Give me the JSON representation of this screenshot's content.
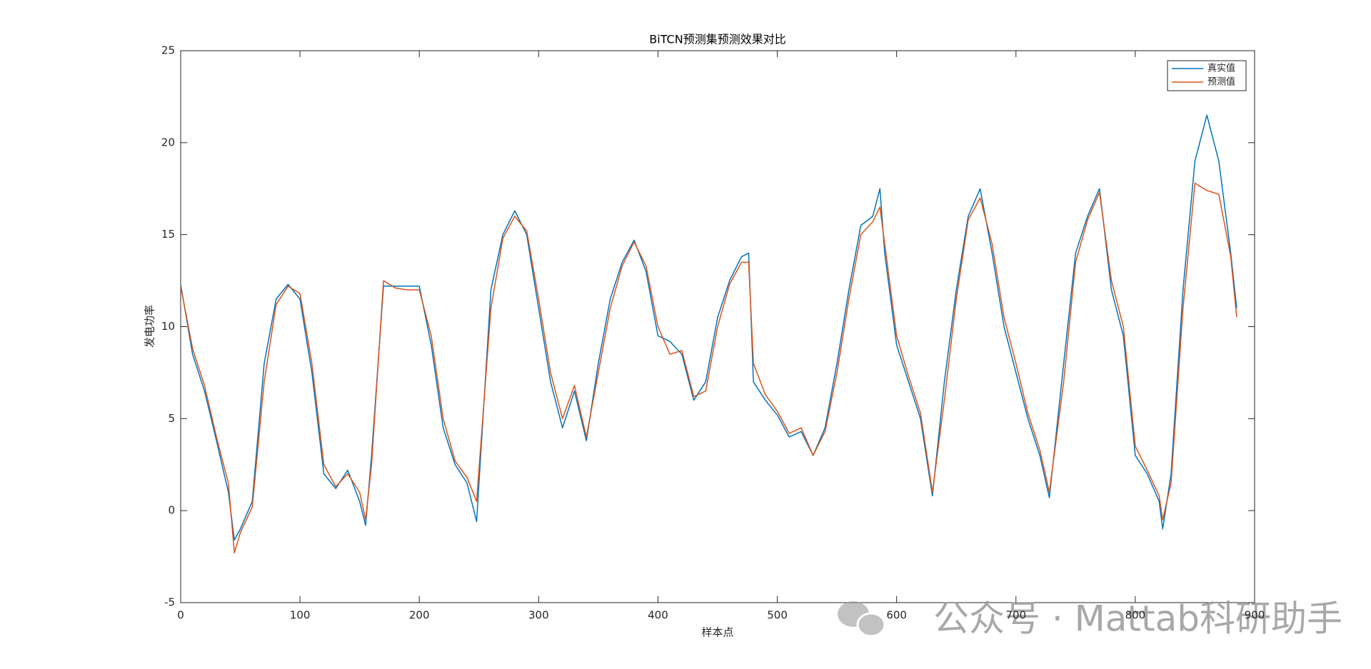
{
  "chart_data": {
    "type": "line",
    "title": "BiTCN预测集预测效果对比",
    "x_label": "样本点",
    "y_label": "发电功率",
    "watermark": "公众号 · Mattab科研助手",
    "x": [
      0,
      10,
      20,
      30,
      40,
      45,
      50,
      60,
      70,
      80,
      90,
      100,
      110,
      120,
      130,
      140,
      150,
      155,
      160,
      170,
      180,
      190,
      200,
      210,
      220,
      230,
      240,
      248,
      260,
      270,
      280,
      290,
      300,
      310,
      320,
      330,
      340,
      350,
      360,
      370,
      380,
      390,
      400,
      410,
      420,
      430,
      440,
      450,
      460,
      470,
      476,
      480,
      490,
      500,
      510,
      520,
      530,
      540,
      550,
      560,
      570,
      580,
      586,
      590,
      600,
      610,
      620,
      630,
      640,
      650,
      660,
      670,
      680,
      690,
      700,
      710,
      720,
      728,
      740,
      750,
      760,
      770,
      780,
      790,
      800,
      810,
      820,
      823,
      830,
      840,
      850,
      860,
      870,
      880,
      885
    ],
    "series": [
      {
        "name": "真实值",
        "color": "#0072BD",
        "values": [
          12.3,
          8.5,
          6.5,
          3.8,
          1.0,
          -1.6,
          -1.0,
          0.5,
          8,
          11.5,
          12.3,
          11.5,
          7.5,
          2.0,
          1.2,
          2.2,
          0.5,
          -0.8,
          3,
          12.2,
          12.2,
          12.2,
          12.2,
          9,
          4.5,
          2.5,
          1.5,
          -0.6,
          12,
          15,
          16.3,
          15,
          11,
          7,
          4.5,
          6.5,
          3.8,
          8,
          11.5,
          13.5,
          14.7,
          13,
          9.5,
          9.2,
          8.5,
          6,
          7,
          10.5,
          12.5,
          13.8,
          14,
          7,
          6,
          5.2,
          4.0,
          4.3,
          3,
          4.5,
          8,
          12,
          15.5,
          16,
          17.5,
          14,
          9,
          7,
          5,
          0.8,
          7,
          12,
          16,
          17.5,
          14,
          10,
          7.5,
          5,
          3,
          0.7,
          8,
          14,
          16,
          17.5,
          12,
          9.5,
          3,
          2,
          0.5,
          -1,
          2,
          12,
          19,
          21.5,
          19,
          14,
          11
        ]
      },
      {
        "name": "预测值",
        "color": "#D95319",
        "values": [
          12.2,
          8.8,
          6.8,
          4.0,
          1.5,
          -2.3,
          -1.2,
          0.2,
          7,
          11.2,
          12.2,
          11.8,
          8,
          2.5,
          1.3,
          2.0,
          1.0,
          -0.5,
          2.5,
          12.5,
          12.1,
          12.0,
          12.0,
          9.5,
          5,
          2.7,
          1.8,
          0.5,
          11,
          14.8,
          16,
          15.2,
          11.5,
          7.5,
          5,
          6.8,
          4,
          7.5,
          11,
          13.3,
          14.6,
          13.3,
          10,
          8.5,
          8.7,
          6.2,
          6.5,
          10,
          12.3,
          13.5,
          13.5,
          8,
          6.3,
          5.4,
          4.2,
          4.5,
          3,
          4.3,
          7.5,
          11.5,
          15,
          15.7,
          16.5,
          14.5,
          9.5,
          7.3,
          5.3,
          1,
          6,
          11.5,
          15.8,
          17,
          14.5,
          10.5,
          8,
          5.3,
          3.3,
          1,
          7,
          13.5,
          15.8,
          17.3,
          12.5,
          10,
          3.5,
          2.2,
          0.8,
          -0.5,
          1.5,
          11,
          17.8,
          17.4,
          17.2,
          13.8,
          10.5
        ]
      }
    ],
    "xlim": [
      0,
      900
    ],
    "ylim": [
      -5,
      25
    ],
    "xticks": [
      0,
      100,
      200,
      300,
      400,
      500,
      600,
      700,
      800,
      900
    ],
    "yticks": [
      -5,
      0,
      5,
      10,
      15,
      20,
      25
    ],
    "legend": "top-right"
  }
}
